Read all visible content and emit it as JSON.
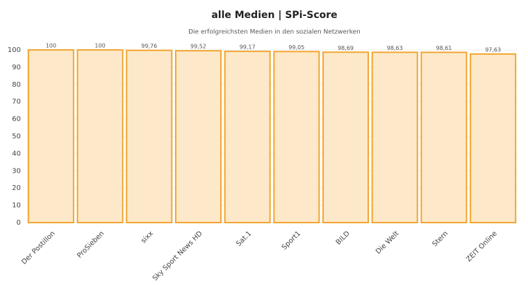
{
  "chart_data": {
    "type": "bar",
    "title": "alle Medien | SPi-Score",
    "subtitle": "Die erfolgreichsten Medien in den sozialen Netzwerken",
    "categories": [
      "Der Postillon",
      "ProSieben",
      "sixx",
      "Sky Sport News HD",
      "Sat.1",
      "Sport1",
      "BILD",
      "Die Welt",
      "Stern",
      "ZEIT Online"
    ],
    "values": [
      100,
      100,
      99.76,
      99.52,
      99.17,
      99.05,
      98.69,
      98.63,
      98.61,
      97.63
    ],
    "value_labels": [
      "100",
      "100",
      "99,76",
      "99,52",
      "99,17",
      "99,05",
      "98,69",
      "98,63",
      "98,61",
      "97,63"
    ],
    "color": "#fde9c9",
    "edge_color": "#f3a430",
    "ylim": [
      0,
      100
    ],
    "yticks": [
      0,
      10,
      20,
      30,
      40,
      50,
      60,
      70,
      80,
      90,
      100
    ],
    "grid": true
  }
}
